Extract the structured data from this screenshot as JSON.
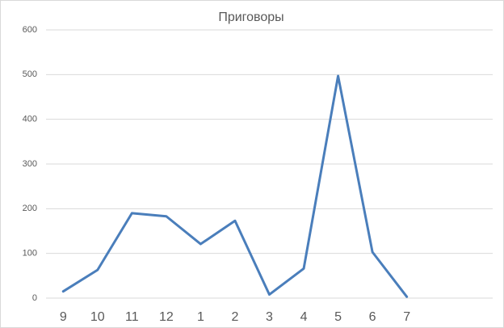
{
  "chart_data": {
    "type": "line",
    "title": "Приговоры",
    "categories": [
      "9",
      "10",
      "11",
      "12",
      "1",
      "2",
      "3",
      "4",
      "5",
      "6",
      "7",
      null,
      null
    ],
    "series": [
      {
        "color": "#4a7ebb",
        "values": [
          15,
          63,
          190,
          183,
          121,
          173,
          8,
          66,
          497,
          103,
          3,
          null,
          null
        ]
      }
    ],
    "ylim": [
      0,
      600
    ],
    "yticks": [
      0,
      100,
      200,
      300,
      400,
      500,
      600
    ],
    "grid": true
  }
}
